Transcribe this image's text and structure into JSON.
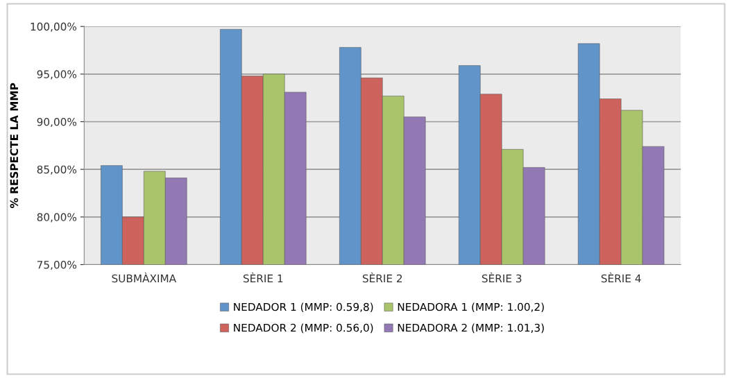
{
  "chart_data": {
    "type": "bar",
    "ylabel": "% RESPECTE LA MMP",
    "categories": [
      "SUBMÀXIMA",
      "SÈRIE 1",
      "SÈRIE 2",
      "SÈRIE 3",
      "SÈRIE 4"
    ],
    "series": [
      {
        "name": "NEDADOR 1 (MMP: 0.59,8)",
        "color": "#6194c9",
        "values": [
          85.4,
          99.7,
          97.8,
          95.9,
          98.2
        ]
      },
      {
        "name": "NEDADOR 2 (MMP: 0.56,0)",
        "color": "#cd635c",
        "values": [
          80.0,
          94.8,
          94.6,
          92.9,
          92.4
        ]
      },
      {
        "name": "NEDADORA 1 (MMP: 1.00,2)",
        "color": "#a9c46a",
        "values": [
          84.8,
          95.0,
          92.7,
          87.1,
          91.2
        ]
      },
      {
        "name": "NEDADORA 2 (MMP: 1.01,3)",
        "color": "#9379b3",
        "values": [
          84.1,
          93.1,
          90.5,
          85.2,
          87.4
        ]
      }
    ],
    "ylim": [
      75,
      100
    ],
    "yticks": [
      {
        "value": 75,
        "label": "75,00%"
      },
      {
        "value": 80,
        "label": "80,00%"
      },
      {
        "value": 85,
        "label": "85,00%"
      },
      {
        "value": 90,
        "label": "90,00%"
      },
      {
        "value": 95,
        "label": "95,00%"
      },
      {
        "value": 100,
        "label": "100,00%"
      }
    ],
    "grid": "y",
    "legend": "bottom"
  }
}
